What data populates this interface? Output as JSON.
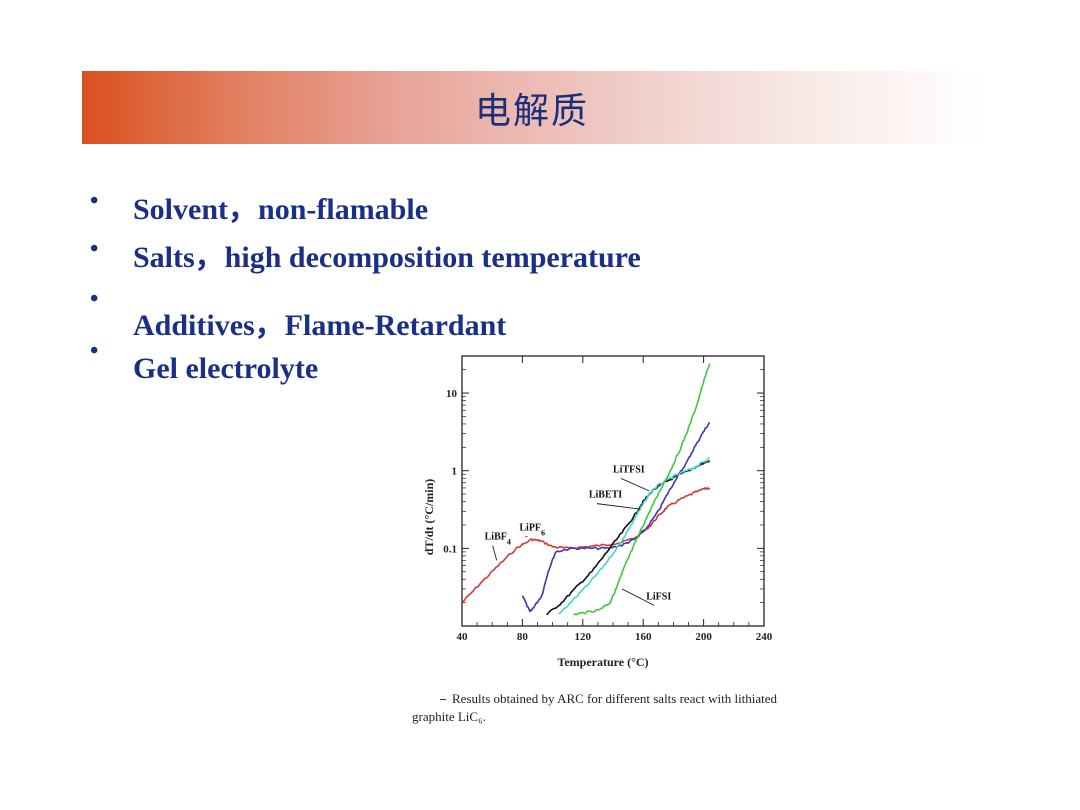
{
  "slide": {
    "title": "电解质",
    "bullets": [
      {
        "text": "Solvent，non-flamable"
      },
      {
        "text": "Salts，high decomposition temperature"
      },
      {
        "text": "Additives，Flame-Retardant"
      },
      {
        "text": "Gel electrolyte"
      }
    ],
    "bullet_symbol": "•"
  },
  "caption": {
    "line1": "Results obtained by ARC for different salts react with lithiated",
    "line2": "graphite LiC₆."
  },
  "colors": {
    "title_text": "#1a2f7a",
    "bullet_text": "#1a2f86",
    "title_gradient_start": "#d9501f"
  },
  "chart_data": {
    "type": "line",
    "title": "",
    "xlabel": "Temperature (°C)",
    "ylabel": "dT/dt (°C/min)",
    "xlim": [
      40,
      240
    ],
    "xticks": [
      40,
      80,
      120,
      160,
      200,
      240
    ],
    "ylim": [
      0.01,
      30
    ],
    "yscale": "log",
    "yticks": [
      0.1,
      1,
      10
    ],
    "ytick_labels": [
      "0.1",
      "1",
      "10"
    ],
    "grid": false,
    "series": [
      {
        "name": "LiBF4",
        "color": "#d23a3a",
        "x": [
          40,
          52,
          64,
          76,
          86,
          92,
          100,
          110,
          122,
          134,
          146,
          156,
          164,
          170,
          176,
          184,
          192,
          200,
          204
        ],
        "y": [
          0.02,
          0.035,
          0.06,
          0.1,
          0.13,
          0.125,
          0.105,
          0.1,
          0.105,
          0.11,
          0.12,
          0.14,
          0.19,
          0.26,
          0.34,
          0.42,
          0.5,
          0.58,
          0.6
        ]
      },
      {
        "name": "LiPF6",
        "color": "#3a3ab0",
        "x": [
          80,
          85,
          88,
          93,
          97,
          102,
          112,
          124,
          136,
          146,
          154,
          162,
          170,
          176,
          182,
          188,
          194,
          200,
          204
        ],
        "y": [
          0.025,
          0.015,
          0.018,
          0.025,
          0.05,
          0.09,
          0.1,
          0.1,
          0.1,
          0.11,
          0.13,
          0.18,
          0.3,
          0.5,
          0.8,
          1.2,
          2.0,
          3.2,
          4.2
        ]
      },
      {
        "name": "LiTFSI",
        "color": "#111111",
        "x": [
          96,
          106,
          116,
          126,
          136,
          146,
          154,
          160,
          166,
          174,
          182,
          190,
          198,
          204
        ],
        "y": [
          0.014,
          0.02,
          0.032,
          0.05,
          0.09,
          0.16,
          0.26,
          0.4,
          0.55,
          0.7,
          0.85,
          1.0,
          1.2,
          1.35
        ]
      },
      {
        "name": "LiBETI",
        "color": "#3fd6d0",
        "x": [
          104,
          114,
          124,
          134,
          144,
          152,
          158,
          164,
          170,
          178,
          186,
          194,
          200,
          204
        ],
        "y": [
          0.014,
          0.022,
          0.035,
          0.06,
          0.11,
          0.2,
          0.32,
          0.5,
          0.65,
          0.8,
          0.95,
          1.1,
          1.3,
          1.45
        ]
      },
      {
        "name": "LiFSI",
        "color": "#3ec83e",
        "x": [
          114,
          122,
          130,
          138,
          142,
          148,
          154,
          160,
          166,
          172,
          178,
          184,
          190,
          196,
          200,
          204
        ],
        "y": [
          0.014,
          0.015,
          0.016,
          0.02,
          0.03,
          0.06,
          0.11,
          0.2,
          0.35,
          0.6,
          1.0,
          1.8,
          3.5,
          7.5,
          14,
          24
        ]
      }
    ],
    "annotations": [
      "LiBF4",
      "LiPF6",
      "LiTFSI",
      "LiBETI",
      "LiFSI"
    ]
  }
}
